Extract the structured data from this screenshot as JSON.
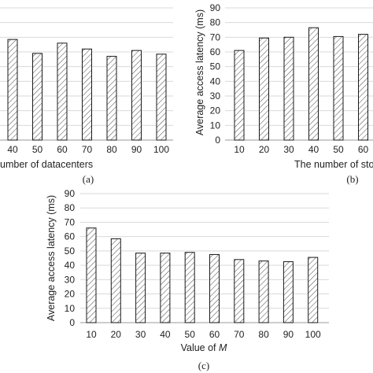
{
  "chart_data": [
    {
      "type": "bar",
      "panel_label": "(a)",
      "categories": [
        "40",
        "50",
        "60",
        "70",
        "80",
        "90",
        "100"
      ],
      "values": [
        68.5,
        59,
        66,
        62,
        57,
        61,
        58.5
      ],
      "ylim": [
        0,
        90
      ],
      "xlabel": "umber of datacenters",
      "ylabel": "",
      "grid": "horizontal",
      "pattern": "diagonal-hatch"
    },
    {
      "type": "bar",
      "panel_label": "(b)",
      "categories": [
        "10",
        "20",
        "30",
        "40",
        "50",
        "60"
      ],
      "values": [
        61,
        69.5,
        70,
        76.5,
        70.5,
        72
      ],
      "ylim": [
        0,
        90
      ],
      "yticks": [
        "0",
        "10",
        "20",
        "30",
        "40",
        "50",
        "60",
        "70",
        "80",
        "90"
      ],
      "xlabel": "The number of sto",
      "ylabel": "Average access latency (ms)",
      "grid": "horizontal",
      "pattern": "diagonal-hatch"
    },
    {
      "type": "bar",
      "panel_label": "(c)",
      "categories": [
        "10",
        "20",
        "30",
        "40",
        "50",
        "60",
        "70",
        "80",
        "90",
        "100"
      ],
      "values": [
        66,
        58.5,
        48.5,
        48.5,
        49,
        47.5,
        44,
        43,
        42.5,
        45.5
      ],
      "ylim": [
        0,
        90
      ],
      "yticks": [
        "0",
        "10",
        "20",
        "30",
        "40",
        "50",
        "60",
        "70",
        "80",
        "90"
      ],
      "xlabel": "Value of ",
      "xlabel_var": "M",
      "ylabel": "Average access latency (ms)",
      "grid": "horizontal",
      "pattern": "diagonal-hatch"
    }
  ]
}
